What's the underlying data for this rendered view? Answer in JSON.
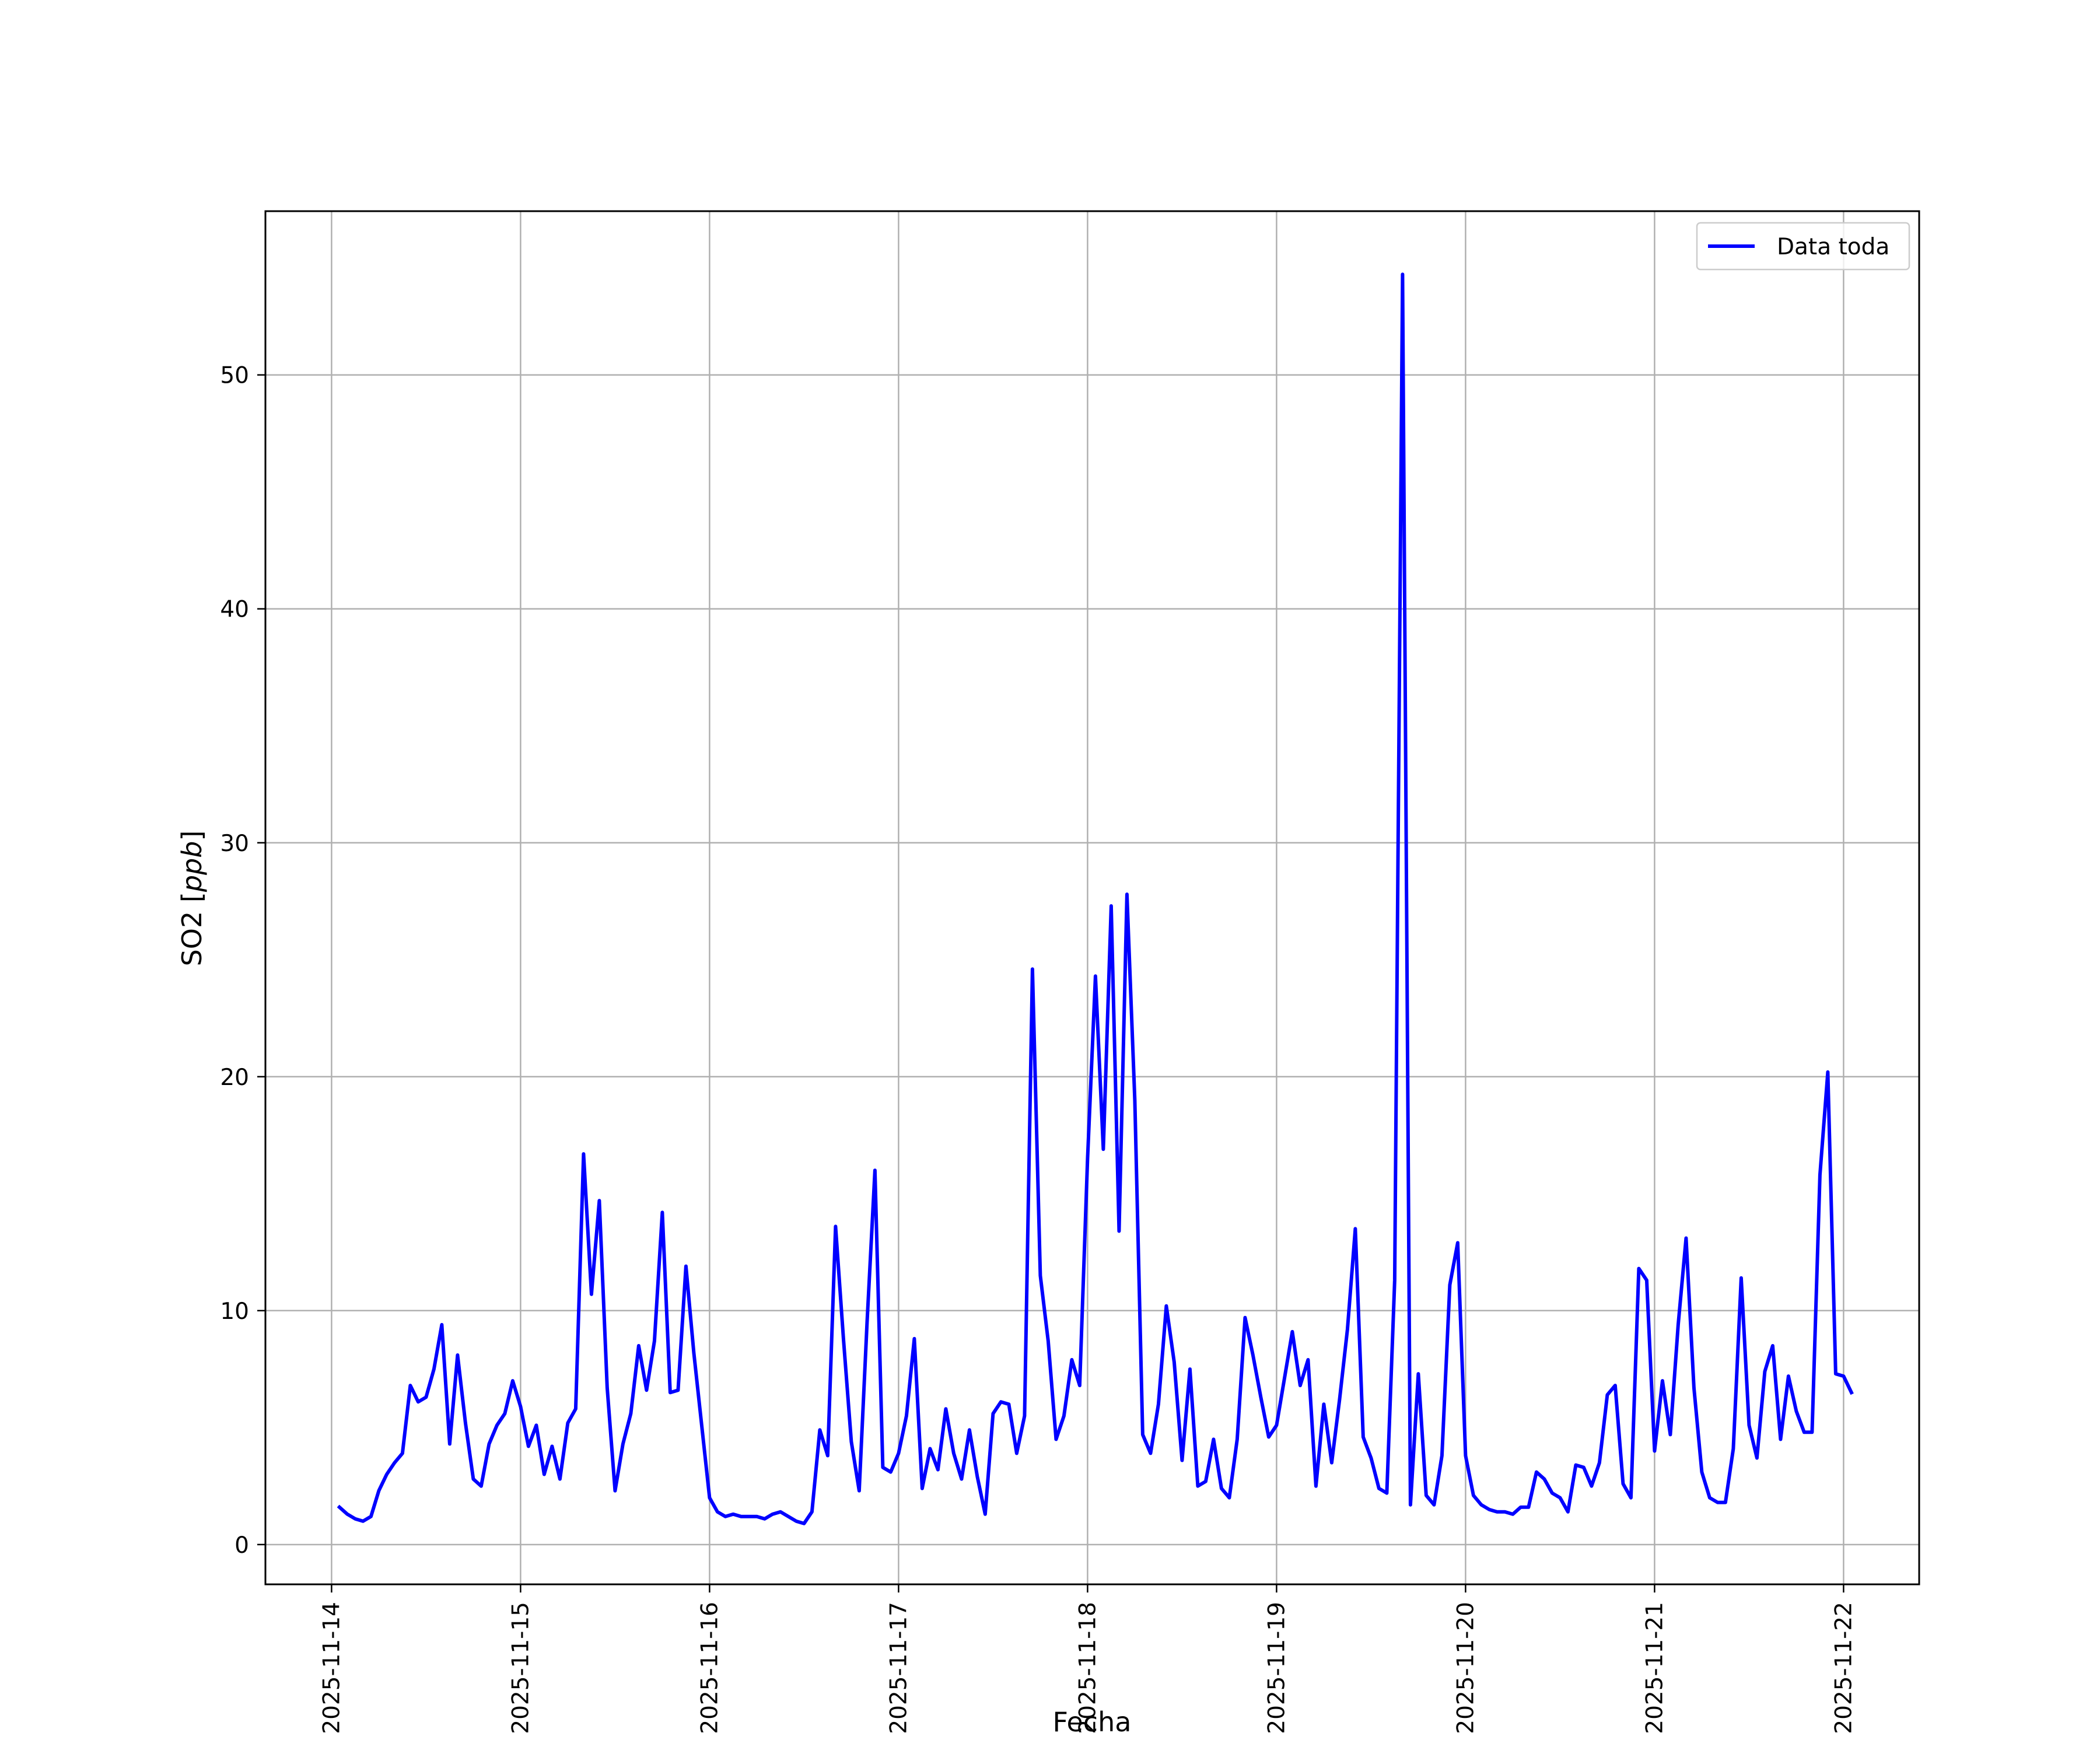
{
  "chart_data": {
    "type": "line",
    "xlabel": "Fecha",
    "ylabel_main": "SO2 [",
    "ylabel_unit": "ppb",
    "ylabel_close": "]",
    "legend_position": "top-right",
    "grid": true,
    "xlim_days": [
      -0.35,
      8.4
    ],
    "ylim": [
      -1.7,
      57.0
    ],
    "x_ticks": [
      "2025-11-14",
      "2025-11-15",
      "2025-11-16",
      "2025-11-17",
      "2025-11-18",
      "2025-11-19",
      "2025-11-20",
      "2025-11-21",
      "2025-11-22"
    ],
    "y_ticks": [
      0,
      10,
      20,
      30,
      40,
      50
    ],
    "series": [
      {
        "name": "Data toda",
        "color": "#0000ff",
        "x_start": "2025-11-14T01:00",
        "x_step_hours": 1,
        "values": [
          1.6,
          1.3,
          1.1,
          1.0,
          1.2,
          2.3,
          3.0,
          3.5,
          3.9,
          6.8,
          6.1,
          6.3,
          7.5,
          9.4,
          4.3,
          8.1,
          5.2,
          2.8,
          2.5,
          4.3,
          5.1,
          5.6,
          7.0,
          5.9,
          4.2,
          5.1,
          3.0,
          4.2,
          2.8,
          5.2,
          5.8,
          16.7,
          10.7,
          14.7,
          6.7,
          2.3,
          4.3,
          5.6,
          8.5,
          6.6,
          8.7,
          14.2,
          6.5,
          6.6,
          11.9,
          8.2,
          5.1,
          2.0,
          1.4,
          1.2,
          1.3,
          1.2,
          1.2,
          1.2,
          1.1,
          1.3,
          1.4,
          1.2,
          1.0,
          0.9,
          1.4,
          4.9,
          3.8,
          13.6,
          8.8,
          4.4,
          2.3,
          9.5,
          16.0,
          3.3,
          3.1,
          3.9,
          5.5,
          8.8,
          2.4,
          4.1,
          3.2,
          5.8,
          3.9,
          2.8,
          4.9,
          2.9,
          1.3,
          5.6,
          6.1,
          6.0,
          3.9,
          5.5,
          24.6,
          11.5,
          8.7,
          4.5,
          5.5,
          7.9,
          6.8,
          16.5,
          24.3,
          16.9,
          27.3,
          13.4,
          27.8,
          19.0,
          4.7,
          3.9,
          6.0,
          10.2,
          7.8,
          3.6,
          7.5,
          2.5,
          2.7,
          4.5,
          2.4,
          2.0,
          4.5,
          9.7,
          8.1,
          6.3,
          4.6,
          5.1,
          7.1,
          9.1,
          6.8,
          7.9,
          2.5,
          6.0,
          3.5,
          6.2,
          9.2,
          13.5,
          4.6,
          3.7,
          2.4,
          2.2,
          11.3,
          54.3,
          1.7,
          7.3,
          2.1,
          1.7,
          3.8,
          11.1,
          12.9,
          3.8,
          2.1,
          1.7,
          1.5,
          1.4,
          1.4,
          1.3,
          1.6,
          1.6,
          3.1,
          2.8,
          2.2,
          2.0,
          1.4,
          3.4,
          3.3,
          2.5,
          3.5,
          6.4,
          6.8,
          2.6,
          2.0,
          11.8,
          11.3,
          4.0,
          7.0,
          4.7,
          9.4,
          13.1,
          6.7,
          3.1,
          2.0,
          1.8,
          1.8,
          4.1,
          11.4,
          5.1,
          3.7,
          7.4,
          8.5,
          4.5,
          7.2,
          5.7,
          4.8,
          4.8,
          15.8,
          20.2,
          7.3,
          7.2,
          6.5
        ]
      }
    ]
  }
}
